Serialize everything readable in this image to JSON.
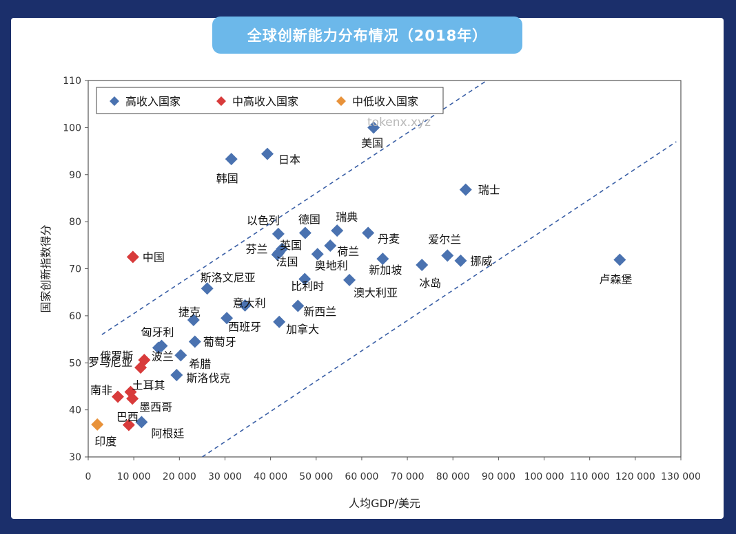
{
  "header": {
    "title": "全球创新能力分布情况（2018年）"
  },
  "watermark": "tokenx.xyz",
  "chart_data": {
    "type": "scatter",
    "xlabel": "人均GDP/美元",
    "ylabel": "国家创新指数得分",
    "xlim": [
      0,
      130000
    ],
    "ylim": [
      30,
      110
    ],
    "x_ticks": [
      0,
      10000,
      20000,
      30000,
      40000,
      50000,
      60000,
      70000,
      80000,
      90000,
      100000,
      110000,
      120000,
      130000
    ],
    "x_tick_labels": [
      "0",
      "10 000",
      "20 000",
      "30 000",
      "40 000",
      "50 000",
      "60 000",
      "70 000",
      "80 000",
      "90 000",
      "100 000",
      "110 000",
      "120 000",
      "130 000"
    ],
    "y_ticks": [
      30,
      40,
      50,
      60,
      70,
      80,
      90,
      100,
      110
    ],
    "legend_position": "top-left",
    "series": [
      {
        "name": "高收入国家",
        "color": "#4a72b0",
        "points": [
          {
            "label": "美国",
            "x": 62600,
            "y": 100
          },
          {
            "label": "日本",
            "x": 39300,
            "y": 94.4
          },
          {
            "label": "韩国",
            "x": 31400,
            "y": 93.3
          },
          {
            "label": "瑞士",
            "x": 82800,
            "y": 86.8
          },
          {
            "label": "以色列",
            "x": 41700,
            "y": 77.4
          },
          {
            "label": "德国",
            "x": 47600,
            "y": 77.6
          },
          {
            "label": "瑞典",
            "x": 54600,
            "y": 78.1
          },
          {
            "label": "丹麦",
            "x": 61400,
            "y": 77.6
          },
          {
            "label": "芬兰",
            "x": 41800,
            "y": 73.4
          },
          {
            "label": "英国",
            "x": 42500,
            "y": 74.2
          },
          {
            "label": "荷兰",
            "x": 53100,
            "y": 74.9
          },
          {
            "label": "法国",
            "x": 41500,
            "y": 73.0
          },
          {
            "label": "奥地利",
            "x": 50300,
            "y": 73.1
          },
          {
            "label": "爱尔兰",
            "x": 78800,
            "y": 72.8
          },
          {
            "label": "新加坡",
            "x": 64600,
            "y": 72.1
          },
          {
            "label": "挪威",
            "x": 81700,
            "y": 71.7
          },
          {
            "label": "冰岛",
            "x": 73200,
            "y": 70.8
          },
          {
            "label": "卢森堡",
            "x": 116600,
            "y": 71.9
          },
          {
            "label": "斯洛文尼亚",
            "x": 26100,
            "y": 65.8
          },
          {
            "label": "比利时",
            "x": 47500,
            "y": 67.8
          },
          {
            "label": "澳大利亚",
            "x": 57300,
            "y": 67.6
          },
          {
            "label": "意大利",
            "x": 34400,
            "y": 62.2
          },
          {
            "label": "新西兰",
            "x": 46000,
            "y": 62.1
          },
          {
            "label": "捷克",
            "x": 23100,
            "y": 59.1
          },
          {
            "label": "西班牙",
            "x": 30400,
            "y": 59.5
          },
          {
            "label": "加拿大",
            "x": 41900,
            "y": 58.7
          },
          {
            "label": "匈牙利",
            "x": 16100,
            "y": 53.6
          },
          {
            "label": "葡萄牙",
            "x": 23400,
            "y": 54.5
          },
          {
            "label": "波兰",
            "x": 15400,
            "y": 53.2
          },
          {
            "label": "希腊",
            "x": 20300,
            "y": 51.6
          },
          {
            "label": "斯洛伐克",
            "x": 19400,
            "y": 47.4
          },
          {
            "label": "阿根廷",
            "x": 11700,
            "y": 37.4
          }
        ]
      },
      {
        "name": "中高收入国家",
        "color": "#d83b3b",
        "points": [
          {
            "label": "中国",
            "x": 9800,
            "y": 72.5
          },
          {
            "label": "俄罗斯",
            "x": 12300,
            "y": 50.6
          },
          {
            "label": "罗马尼亚",
            "x": 11500,
            "y": 49.0
          },
          {
            "label": "土耳其",
            "x": 9300,
            "y": 43.8
          },
          {
            "label": "墨西哥",
            "x": 9700,
            "y": 42.4
          },
          {
            "label": "南非",
            "x": 6500,
            "y": 42.8
          },
          {
            "label": "巴西",
            "x": 8900,
            "y": 36.8
          }
        ]
      },
      {
        "name": "中低收入国家",
        "color": "#e8923a",
        "points": [
          {
            "label": "印度",
            "x": 2000,
            "y": 36.9
          }
        ]
      }
    ],
    "reference_lines": [
      {
        "x1": 3000,
        "y1": 56,
        "x2": 89000,
        "y2": 111
      },
      {
        "x1": 25000,
        "y1": 30,
        "x2": 129000,
        "y2": 97
      }
    ]
  }
}
